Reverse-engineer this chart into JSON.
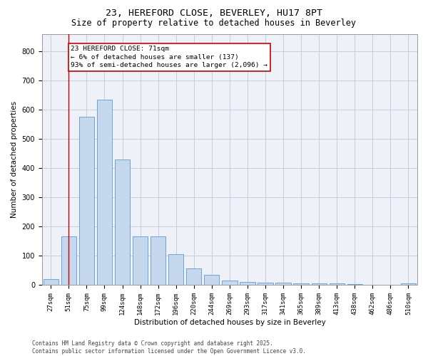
{
  "title_line1": "23, HEREFORD CLOSE, BEVERLEY, HU17 8PT",
  "title_line2": "Size of property relative to detached houses in Beverley",
  "xlabel": "Distribution of detached houses by size in Beverley",
  "ylabel": "Number of detached properties",
  "categories": [
    "27sqm",
    "51sqm",
    "75sqm",
    "99sqm",
    "124sqm",
    "148sqm",
    "172sqm",
    "196sqm",
    "220sqm",
    "244sqm",
    "269sqm",
    "293sqm",
    "317sqm",
    "341sqm",
    "365sqm",
    "389sqm",
    "413sqm",
    "438sqm",
    "462sqm",
    "486sqm",
    "510sqm"
  ],
  "values": [
    20,
    165,
    575,
    635,
    430,
    165,
    165,
    105,
    55,
    35,
    15,
    10,
    8,
    8,
    5,
    4,
    4,
    2,
    1,
    1,
    5
  ],
  "bar_color": "#c5d8ed",
  "bar_edge_color": "#5b9bd5",
  "grid_color": "#c0c8d8",
  "annotation_text": "23 HEREFORD CLOSE: 71sqm\n← 6% of detached houses are smaller (137)\n93% of semi-detached houses are larger (2,096) →",
  "annotation_box_color": "#ffffff",
  "annotation_box_edge": "#cc0000",
  "vline_x": 1,
  "vline_color": "#cc0000",
  "ylim": [
    0,
    860
  ],
  "yticks": [
    0,
    100,
    200,
    300,
    400,
    500,
    600,
    700,
    800
  ],
  "background_color": "#eef2f8",
  "footer_text": "Contains HM Land Registry data © Crown copyright and database right 2025.\nContains public sector information licensed under the Open Government Licence v3.0.",
  "title_fontsize": 9.5,
  "subtitle_fontsize": 8.5,
  "axis_label_fontsize": 7.5,
  "tick_fontsize": 6.5,
  "annotation_fontsize": 6.8,
  "footer_fontsize": 5.5
}
